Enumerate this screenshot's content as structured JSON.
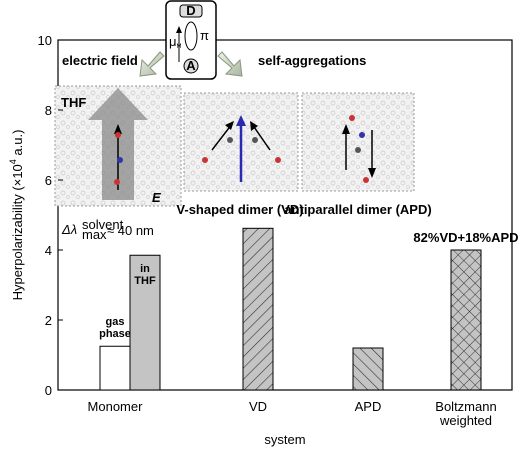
{
  "chart_data": {
    "type": "bar",
    "ylabel": [
      "Hyperpolarizability (×10",
      "4",
      " a.u.)"
    ],
    "xlabel": "system",
    "categories": [
      "Monomer",
      "VD",
      "APD",
      "Boltzmann weighted"
    ],
    "series": [
      {
        "name": "gas phase",
        "color": "#ffffff",
        "values": [
          1.25,
          null,
          null,
          null
        ],
        "patterns": [
          "solid",
          null,
          null,
          null
        ]
      },
      {
        "name": "in THF",
        "color": "#c4c4c4",
        "values": [
          3.85,
          4.62,
          1.2,
          4.0
        ],
        "patterns": [
          "solid",
          "diagonal",
          "antidiagonal",
          "crosshatch"
        ]
      }
    ],
    "ylim": [
      0,
      10
    ],
    "yticks": [
      0,
      2,
      4,
      6,
      8,
      10
    ],
    "annotations": {
      "mixture": "82%VD+18%APD",
      "electric_field": "electric field",
      "self_aggregations": "self-aggregations",
      "solvent": "THF",
      "field_symbol": "E",
      "vd_caption": "V-shaped dimer (VD)",
      "apd_caption": "antiparallel dimer (APD)",
      "shift": [
        "Δλ",
        "max",
        "solvent",
        "≈ 40 nm"
      ],
      "donor": "D",
      "acceptor": "A",
      "bridge": "π",
      "dipole": [
        "μ",
        "M"
      ]
    }
  }
}
